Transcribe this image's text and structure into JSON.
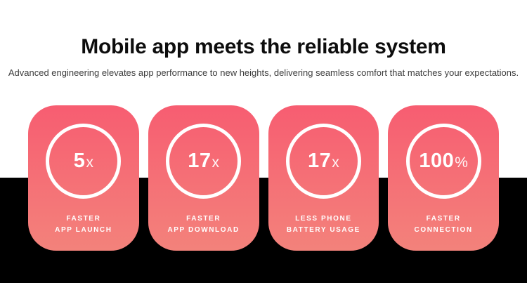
{
  "header": {
    "title": "Mobile app meets the reliable system",
    "subtitle": "Advanced engineering elevates app performance to new heights, delivering seamless comfort that matches your expectations."
  },
  "colors": {
    "card_gradient_top": "#f75d71",
    "card_gradient_bottom": "#f3827b",
    "band_background": "#000000",
    "title_text": "#0d0d0d",
    "subtitle_text": "#3d3d3d",
    "card_text": "#ffffff"
  },
  "stats": [
    {
      "value": "5",
      "suffix": "x",
      "label": "FASTER\nAPP LAUNCH"
    },
    {
      "value": "17",
      "suffix": "x",
      "label": "FASTER\nAPP DOWNLOAD"
    },
    {
      "value": "17",
      "suffix": "x",
      "label": "LESS PHONE\nBATTERY USAGE"
    },
    {
      "value": "100",
      "suffix": "%",
      "label": "FASTER\nCONNECTION"
    }
  ]
}
